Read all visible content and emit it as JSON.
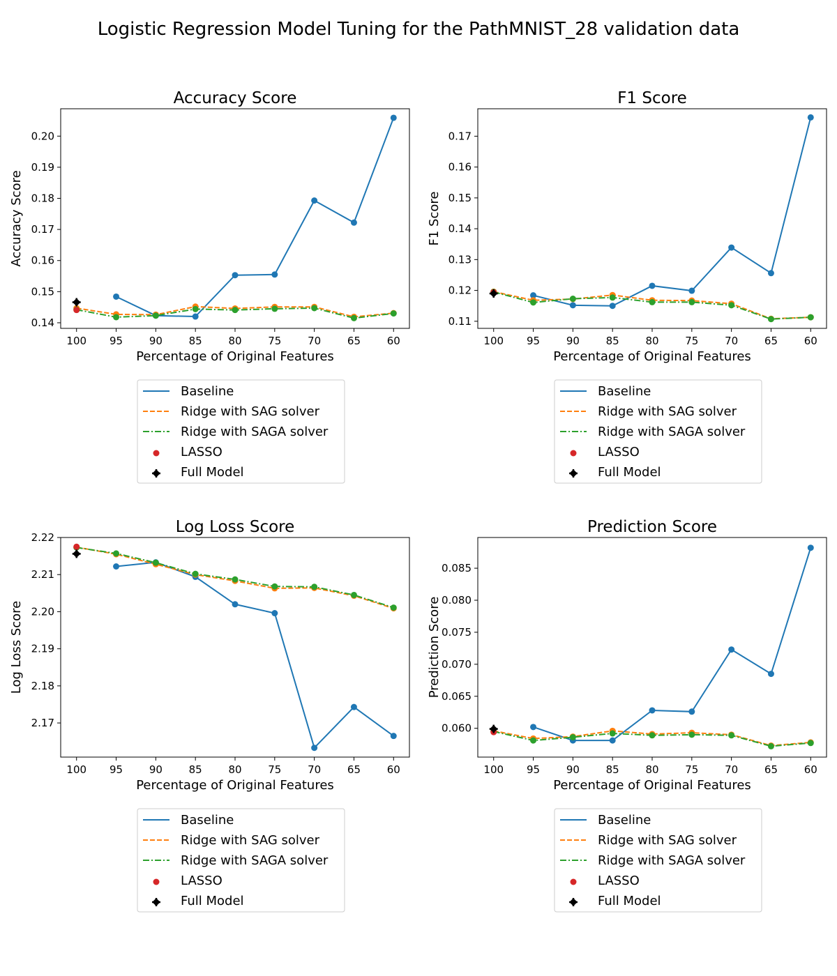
{
  "figure_title": "Logistic Regression Model Tuning for the PathMNIST_28 validation data",
  "legend_labels": [
    "Baseline",
    "Ridge with SAG solver",
    "Ridge with SAGA solver",
    "LASSO",
    "Full Model"
  ],
  "colors": {
    "baseline": "#1f77b4",
    "ridge_sag": "#ff7f0e",
    "ridge_saga": "#2ca02c",
    "lasso": "#d62728",
    "full_model": "#000000"
  },
  "chart_data": [
    {
      "type": "line",
      "title": "Accuracy Score",
      "xlabel": "Percentage of Original Features",
      "ylabel": "Accuracy Score",
      "x_ticks": [
        100,
        95,
        90,
        85,
        80,
        75,
        70,
        65,
        60
      ],
      "y_ticks": [
        "0.14",
        "0.15",
        "0.16",
        "0.17",
        "0.18",
        "0.19",
        "0.20"
      ],
      "xlim": [
        102,
        58
      ],
      "ylim": [
        0.1382,
        0.2088
      ],
      "legend_position": "below",
      "series": [
        {
          "name": "Baseline",
          "x": [
            95,
            90,
            85,
            80,
            75,
            70,
            65,
            60
          ],
          "y": [
            0.1484,
            0.1423,
            0.142,
            0.1553,
            0.1555,
            0.1793,
            0.1722,
            0.2059
          ]
        },
        {
          "name": "Ridge with SAG solver",
          "x": [
            100,
            95,
            90,
            85,
            80,
            75,
            70,
            65,
            60
          ],
          "y": [
            0.1447,
            0.1427,
            0.1426,
            0.1452,
            0.1446,
            0.1451,
            0.1451,
            0.1419,
            0.1431
          ]
        },
        {
          "name": "Ridge with SAGA solver",
          "x": [
            100,
            95,
            90,
            85,
            80,
            75,
            70,
            65,
            60
          ],
          "y": [
            0.1442,
            0.1418,
            0.1423,
            0.1444,
            0.1441,
            0.1445,
            0.1447,
            0.1415,
            0.143
          ]
        },
        {
          "name": "LASSO",
          "x": [
            100
          ],
          "y": [
            0.1441
          ]
        },
        {
          "name": "Full Model",
          "x": [
            100
          ],
          "y": [
            0.1466
          ]
        }
      ]
    },
    {
      "type": "line",
      "title": "F1 Score",
      "xlabel": "Percentage of Original Features",
      "ylabel": "F1 Score",
      "x_ticks": [
        100,
        95,
        90,
        85,
        80,
        75,
        70,
        65,
        60
      ],
      "y_ticks": [
        "0.11",
        "0.12",
        "0.13",
        "0.14",
        "0.15",
        "0.16",
        "0.17"
      ],
      "xlim": [
        102,
        58
      ],
      "ylim": [
        0.1077,
        0.1789
      ],
      "legend_position": "below",
      "series": [
        {
          "name": "Baseline",
          "x": [
            95,
            90,
            85,
            80,
            75,
            70,
            65,
            60
          ],
          "y": [
            0.1184,
            0.1152,
            0.115,
            0.1215,
            0.1199,
            0.1339,
            0.1256,
            0.1761
          ]
        },
        {
          "name": "Ridge with SAG solver",
          "x": [
            100,
            95,
            90,
            85,
            80,
            75,
            70,
            65,
            60
          ],
          "y": [
            0.1196,
            0.1168,
            0.1172,
            0.1185,
            0.1168,
            0.1167,
            0.1157,
            0.1108,
            0.1113
          ]
        },
        {
          "name": "Ridge with SAGA solver",
          "x": [
            100,
            95,
            90,
            85,
            80,
            75,
            70,
            65,
            60
          ],
          "y": [
            0.1195,
            0.1161,
            0.1173,
            0.1177,
            0.1162,
            0.1162,
            0.1152,
            0.1107,
            0.1113
          ]
        },
        {
          "name": "LASSO",
          "x": [
            100
          ],
          "y": [
            0.1194
          ]
        },
        {
          "name": "Full Model",
          "x": [
            100
          ],
          "y": [
            0.119
          ]
        }
      ]
    },
    {
      "type": "line",
      "title": "Log Loss Score",
      "xlabel": "Percentage of Original Features",
      "ylabel": "Log Loss Score",
      "x_ticks": [
        100,
        95,
        90,
        85,
        80,
        75,
        70,
        65,
        60
      ],
      "y_ticks": [
        "2.17",
        "2.18",
        "2.19",
        "2.20",
        "2.21",
        "2.22"
      ],
      "xlim": [
        102,
        58
      ],
      "ylim": [
        2.1608,
        2.22
      ],
      "legend_position": "below",
      "series": [
        {
          "name": "Baseline",
          "x": [
            95,
            90,
            85,
            80,
            75,
            70,
            65,
            60
          ],
          "y": [
            2.2122,
            2.2133,
            2.2094,
            2.202,
            2.1996,
            2.1633,
            2.1743,
            2.1665
          ]
        },
        {
          "name": "Ridge with SAG solver",
          "x": [
            100,
            95,
            90,
            85,
            80,
            75,
            70,
            65,
            60
          ],
          "y": [
            2.2174,
            2.2155,
            2.2128,
            2.21,
            2.2083,
            2.2063,
            2.2064,
            2.2043,
            2.2009
          ]
        },
        {
          "name": "Ridge with SAGA solver",
          "x": [
            100,
            95,
            90,
            85,
            80,
            75,
            70,
            65,
            60
          ],
          "y": [
            2.2173,
            2.2157,
            2.2132,
            2.2102,
            2.2087,
            2.2068,
            2.2067,
            2.2045,
            2.2011
          ]
        },
        {
          "name": "LASSO",
          "x": [
            100
          ],
          "y": [
            2.2175
          ]
        },
        {
          "name": "Full Model",
          "x": [
            100
          ],
          "y": [
            2.2156
          ]
        }
      ]
    },
    {
      "type": "line",
      "title": "Prediction Score",
      "xlabel": "Percentage of Original Features",
      "ylabel": "Prediction Score",
      "x_ticks": [
        100,
        95,
        90,
        85,
        80,
        75,
        70,
        65,
        60
      ],
      "y_ticks": [
        "0.060",
        "0.065",
        "0.070",
        "0.075",
        "0.080",
        "0.085"
      ],
      "xlim": [
        102,
        58
      ],
      "ylim": [
        0.0555,
        0.0898
      ],
      "legend_position": "below",
      "series": [
        {
          "name": "Baseline",
          "x": [
            95,
            90,
            85,
            80,
            75,
            70,
            65,
            60
          ],
          "y": [
            0.0602,
            0.0581,
            0.0581,
            0.0628,
            0.0626,
            0.0723,
            0.0685,
            0.0882
          ]
        },
        {
          "name": "Ridge with SAG solver",
          "x": [
            100,
            95,
            90,
            85,
            80,
            75,
            70,
            65,
            60
          ],
          "y": [
            0.0596,
            0.0584,
            0.0587,
            0.0596,
            0.0591,
            0.0593,
            0.059,
            0.0573,
            0.0578
          ]
        },
        {
          "name": "Ridge with SAGA solver",
          "x": [
            100,
            95,
            90,
            85,
            80,
            75,
            70,
            65,
            60
          ],
          "y": [
            0.0595,
            0.0581,
            0.0586,
            0.0592,
            0.0589,
            0.059,
            0.0589,
            0.0572,
            0.0577
          ]
        },
        {
          "name": "LASSO",
          "x": [
            100
          ],
          "y": [
            0.0594
          ]
        },
        {
          "name": "Full Model",
          "x": [
            100
          ],
          "y": [
            0.0599
          ]
        }
      ]
    }
  ]
}
